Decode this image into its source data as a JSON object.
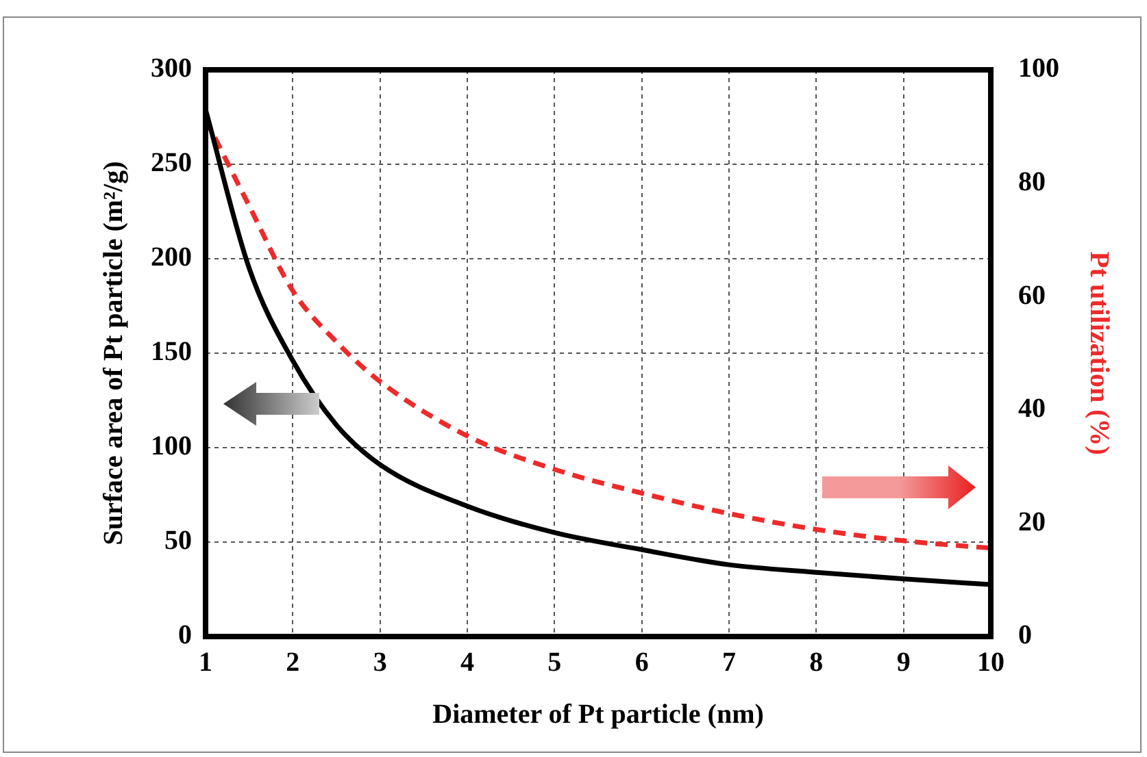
{
  "chart_data": {
    "type": "line",
    "xlabel": "Diameter of Pt particle (nm)",
    "ylabel": "Surface area of Pt particle (m²/g)",
    "y2label": "Pt utilization (%)",
    "x": [
      1,
      1.5,
      2,
      2.5,
      3,
      4,
      5,
      6,
      7,
      8,
      9,
      10
    ],
    "series": [
      {
        "color": "#000000",
        "line_style": "solid",
        "values": [
          279,
          195,
          146,
          112,
          91,
          69,
          55,
          46,
          38,
          34,
          30.5,
          27.5
        ]
      },
      {
        "color": "#ee2a2a",
        "line_style": "dashed",
        "axis": "y2",
        "values": [
          91.3,
          76,
          61,
          52,
          45,
          35.4,
          29.5,
          25.3,
          21.7,
          18.9,
          16.9,
          15.6
        ]
      }
    ],
    "xlim": [
      1,
      10
    ],
    "xticks": [
      1,
      2,
      3,
      4,
      5,
      6,
      7,
      8,
      9,
      10
    ],
    "ylim": [
      0,
      300
    ],
    "yticks": [
      0,
      50,
      100,
      150,
      200,
      250,
      300
    ],
    "y2lim": [
      0,
      100
    ],
    "y2ticks": [
      0,
      20,
      40,
      60,
      80,
      100
    ],
    "grid": true,
    "legend": false,
    "marker": "none"
  }
}
